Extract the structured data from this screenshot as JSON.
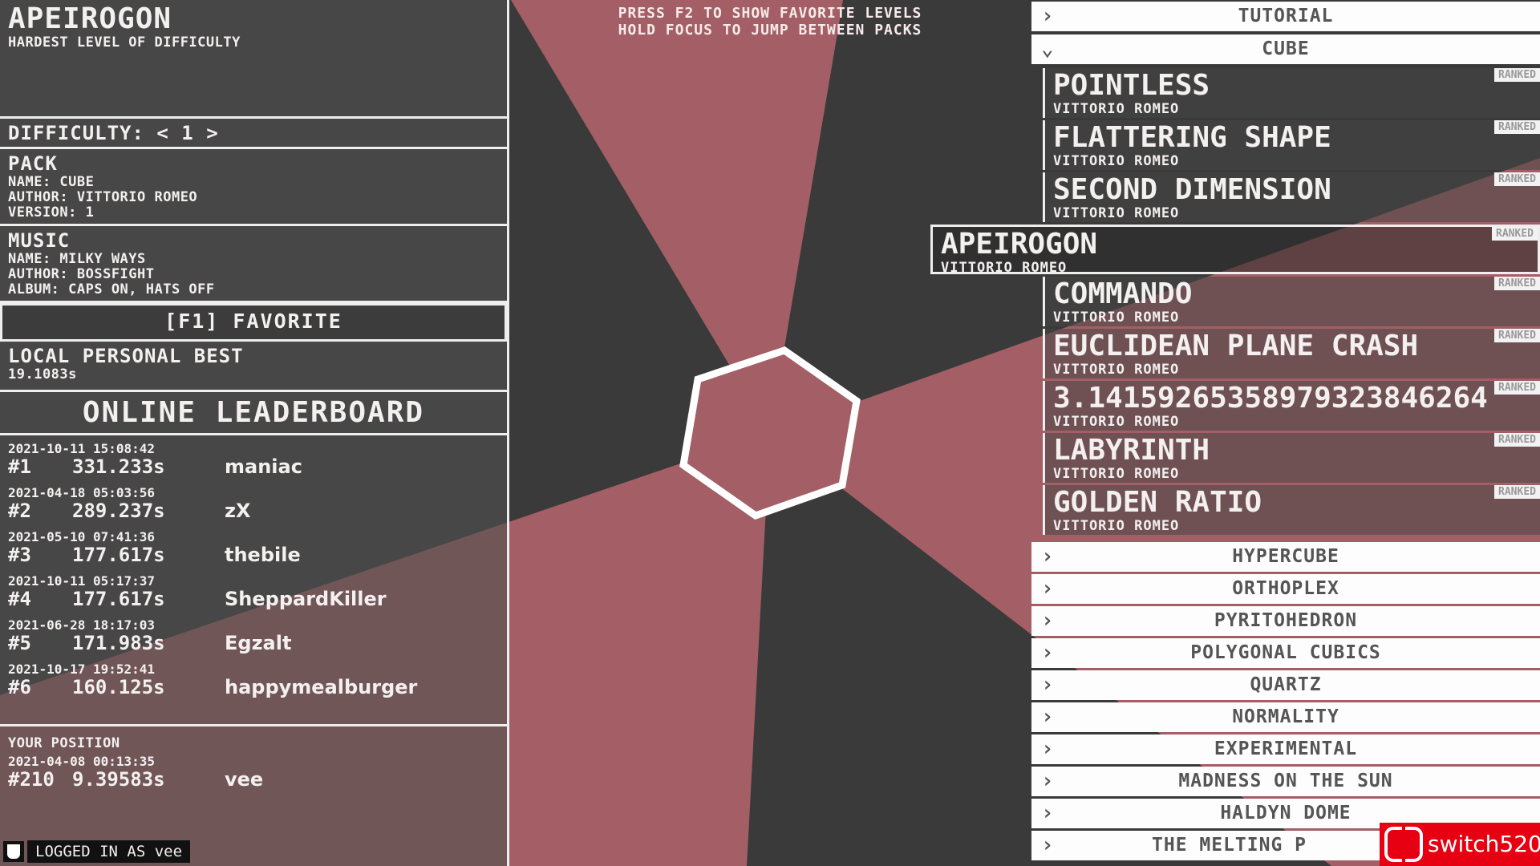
{
  "colors": {
    "dark": "#3a3a3a",
    "accent": "#a35f65",
    "white": "#f4f0f0"
  },
  "hints": [
    "PRESS F2 TO SHOW FAVORITE LEVELS",
    "HOLD FOCUS TO JUMP BETWEEN PACKS"
  ],
  "level": {
    "title": "APEIROGON",
    "description": "HARDEST LEVEL OF DIFFICULTY",
    "difficulty": "DIFFICULTY: < 1 >"
  },
  "pack": {
    "heading": "PACK",
    "name": "NAME: CUBE",
    "author": "AUTHOR: VITTORIO ROMEO",
    "version": "VERSION: 1"
  },
  "music": {
    "heading": "MUSIC",
    "name": "NAME: MILKY WAYS",
    "author": "AUTHOR: BOSSFIGHT",
    "album": "ALBUM: CAPS ON, HATS OFF"
  },
  "favorite_button": "[F1]   FAVORITE",
  "personal_best": {
    "heading": "LOCAL PERSONAL BEST",
    "value": "19.1083s"
  },
  "leaderboard": {
    "title": "ONLINE LEADERBOARD",
    "entries": [
      {
        "date": "2021-10-11 15:08:42",
        "rank": "#1",
        "time": "331.233s",
        "name": "maniac"
      },
      {
        "date": "2021-04-18 05:03:56",
        "rank": "#2",
        "time": "289.237s",
        "name": "zX"
      },
      {
        "date": "2021-05-10 07:41:36",
        "rank": "#3",
        "time": "177.617s",
        "name": "thebile"
      },
      {
        "date": "2021-10-11 05:17:37",
        "rank": "#4",
        "time": "177.617s",
        "name": "SheppardKiller"
      },
      {
        "date": "2021-06-28 18:17:03",
        "rank": "#5",
        "time": "171.983s",
        "name": "Egzalt"
      },
      {
        "date": "2021-10-17 19:52:41",
        "rank": "#6",
        "time": "160.125s",
        "name": "happymealburger"
      }
    ]
  },
  "your_position": {
    "heading": "YOUR POSITION",
    "date": "2021-04-08 00:13:35",
    "rank": "#210",
    "time": "9.39583s",
    "name": "vee"
  },
  "login": "LOGGED IN AS vee",
  "packs_top": [
    {
      "name": "TUTORIAL",
      "icon": "chevron-right"
    },
    {
      "name": "CUBE",
      "icon": "chevron-down"
    }
  ],
  "levels": [
    {
      "name": "POINTLESS",
      "author": "VITTORIO ROMEO",
      "badge": "RANKED"
    },
    {
      "name": "FLATTERING SHAPE",
      "author": "VITTORIO ROMEO",
      "badge": "RANKED"
    },
    {
      "name": "SECOND DIMENSION",
      "author": "VITTORIO ROMEO",
      "badge": "RANKED"
    },
    {
      "name": "APEIROGON",
      "author": "VITTORIO ROMEO",
      "badge": "RANKED",
      "selected": true
    },
    {
      "name": "COMMANDO",
      "author": "VITTORIO ROMEO",
      "badge": "RANKED"
    },
    {
      "name": "EUCLIDEAN PLANE CRASH",
      "author": "VITTORIO ROMEO",
      "badge": "RANKED"
    },
    {
      "name": "3.14159265358979323846264",
      "author": "VITTORIO ROMEO",
      "badge": "RANKED"
    },
    {
      "name": "LABYRINTH",
      "author": "VITTORIO ROMEO",
      "badge": "RANKED"
    },
    {
      "name": "GOLDEN RATIO",
      "author": "VITTORIO ROMEO",
      "badge": "RANKED"
    }
  ],
  "packs_bottom": [
    "HYPERCUBE",
    "ORTHOPLEX",
    "PYRITOHEDRON",
    "POLYGONAL CUBICS",
    "QUARTZ",
    "NORMALITY",
    "EXPERIMENTAL",
    "MADNESS ON THE SUN",
    "HALDYN DOME",
    "THE MELTING P"
  ],
  "watermark": "switch520"
}
